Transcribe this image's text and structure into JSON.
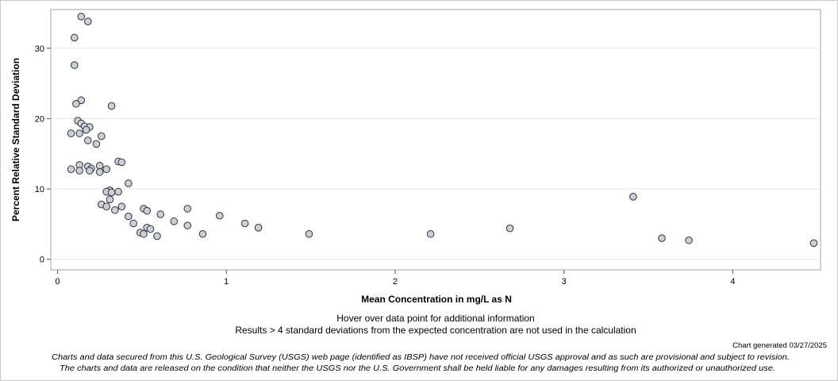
{
  "chart_data": {
    "type": "scatter",
    "xlabel": "Mean Concentration in mg/L as N",
    "ylabel": "Percent Relative Standard Deviation",
    "xlim": [
      -0.04,
      4.52
    ],
    "ylim": [
      -1.5,
      35.5
    ],
    "xticks": [
      0,
      1,
      2,
      3,
      4
    ],
    "yticks": [
      0,
      10,
      20,
      30
    ],
    "grid": true,
    "marker_fill": "#c8d0dc",
    "marker_stroke": "#333333",
    "points": [
      {
        "x": 0.14,
        "y": 34.5
      },
      {
        "x": 0.18,
        "y": 33.8
      },
      {
        "x": 0.1,
        "y": 31.5
      },
      {
        "x": 0.1,
        "y": 27.6
      },
      {
        "x": 0.14,
        "y": 22.6
      },
      {
        "x": 0.11,
        "y": 22.1
      },
      {
        "x": 0.32,
        "y": 21.8
      },
      {
        "x": 0.12,
        "y": 19.7
      },
      {
        "x": 0.14,
        "y": 19.3
      },
      {
        "x": 0.16,
        "y": 18.9
      },
      {
        "x": 0.19,
        "y": 18.8
      },
      {
        "x": 0.17,
        "y": 18.4
      },
      {
        "x": 0.08,
        "y": 17.9
      },
      {
        "x": 0.13,
        "y": 17.9
      },
      {
        "x": 0.26,
        "y": 17.5
      },
      {
        "x": 0.18,
        "y": 16.9
      },
      {
        "x": 0.23,
        "y": 16.4
      },
      {
        "x": 0.36,
        "y": 13.9
      },
      {
        "x": 0.38,
        "y": 13.8
      },
      {
        "x": 0.13,
        "y": 13.4
      },
      {
        "x": 0.18,
        "y": 13.2
      },
      {
        "x": 0.25,
        "y": 13.3
      },
      {
        "x": 0.2,
        "y": 12.9
      },
      {
        "x": 0.08,
        "y": 12.8
      },
      {
        "x": 0.29,
        "y": 12.8
      },
      {
        "x": 0.13,
        "y": 12.6
      },
      {
        "x": 0.19,
        "y": 12.6
      },
      {
        "x": 0.25,
        "y": 12.4
      },
      {
        "x": 0.42,
        "y": 10.8
      },
      {
        "x": 0.31,
        "y": 9.8
      },
      {
        "x": 0.29,
        "y": 9.6
      },
      {
        "x": 0.36,
        "y": 9.6
      },
      {
        "x": 0.32,
        "y": 9.5
      },
      {
        "x": 0.31,
        "y": 8.5
      },
      {
        "x": 0.26,
        "y": 7.8
      },
      {
        "x": 0.29,
        "y": 7.5
      },
      {
        "x": 0.38,
        "y": 7.5
      },
      {
        "x": 0.34,
        "y": 7.0
      },
      {
        "x": 0.51,
        "y": 7.2
      },
      {
        "x": 0.53,
        "y": 6.9
      },
      {
        "x": 0.77,
        "y": 7.2
      },
      {
        "x": 0.61,
        "y": 6.4
      },
      {
        "x": 0.96,
        "y": 6.2
      },
      {
        "x": 0.42,
        "y": 6.1
      },
      {
        "x": 0.69,
        "y": 5.4
      },
      {
        "x": 0.45,
        "y": 5.1
      },
      {
        "x": 1.11,
        "y": 5.1
      },
      {
        "x": 0.77,
        "y": 4.8
      },
      {
        "x": 1.19,
        "y": 4.5
      },
      {
        "x": 0.53,
        "y": 4.5
      },
      {
        "x": 0.55,
        "y": 4.3
      },
      {
        "x": 0.49,
        "y": 3.8
      },
      {
        "x": 0.51,
        "y": 3.6
      },
      {
        "x": 0.59,
        "y": 3.3
      },
      {
        "x": 0.86,
        "y": 3.6
      },
      {
        "x": 1.49,
        "y": 3.6
      },
      {
        "x": 2.21,
        "y": 3.6
      },
      {
        "x": 2.68,
        "y": 4.4
      },
      {
        "x": 3.41,
        "y": 8.9
      },
      {
        "x": 3.58,
        "y": 3.0
      },
      {
        "x": 3.74,
        "y": 2.7
      },
      {
        "x": 4.48,
        "y": 2.3
      }
    ]
  },
  "notes": {
    "hover_hint": "Hover over data point for additional information",
    "exclusion_note": "Results > 4 standard deviations from the expected concentration are not used in the calculation",
    "generated": "Chart generated 03/27/2025",
    "disclaimer_1": "Charts and data secured from this U.S. Geological Survey (USGS) web page (identified as IBSP) have not received official USGS approval and as such are provisional and subject to revision.",
    "disclaimer_2": "The charts and data are released on the condition that neither the USGS nor the U.S. Government shall be held liable for any damages resulting from its authorized or unauthorized use."
  }
}
